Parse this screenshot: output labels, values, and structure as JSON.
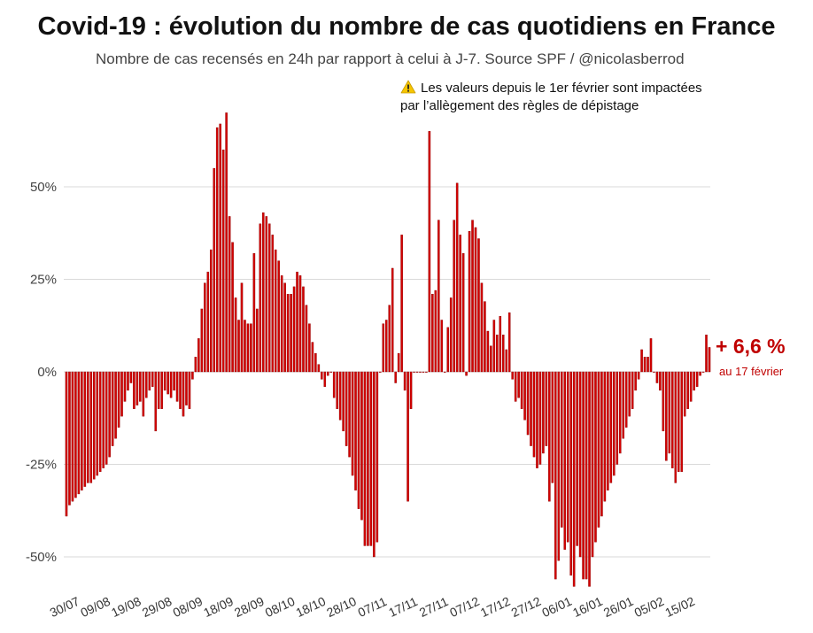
{
  "title": "Covid-19 : évolution du nombre de cas quotidiens en France",
  "subtitle": "Nombre de cas recensés en 24h par rapport à celui à J-7. Source SPF / @nicolasberrod",
  "note": {
    "line1": "Les valeurs depuis le 1er février sont impactées",
    "line2": "par l’allègement des règles de dépistage",
    "icon": "warning-icon"
  },
  "annotation": {
    "value": "+ 6,6 %",
    "date": "au 17 février"
  },
  "colors": {
    "bar": "#d40000",
    "bar_edge": "#8a0000",
    "grid": "#d9d9d9",
    "accent": "#c00000"
  },
  "chart_data": {
    "type": "bar",
    "ylabel": "",
    "xlabel": "",
    "ylim": [
      -55,
      70
    ],
    "yticks": [
      {
        "value": 50,
        "label": "50%"
      },
      {
        "value": 25,
        "label": "25%"
      },
      {
        "value": 0,
        "label": "0%"
      },
      {
        "value": -25,
        "label": "-25%"
      },
      {
        "value": -50,
        "label": "-50%"
      }
    ],
    "xtick_labels": [
      {
        "index": 0,
        "label": "30/07"
      },
      {
        "index": 10,
        "label": "09/08"
      },
      {
        "index": 20,
        "label": "19/08"
      },
      {
        "index": 30,
        "label": "29/08"
      },
      {
        "index": 40,
        "label": "08/09"
      },
      {
        "index": 50,
        "label": "18/09"
      },
      {
        "index": 60,
        "label": "28/09"
      },
      {
        "index": 70,
        "label": "08/10"
      },
      {
        "index": 80,
        "label": "18/10"
      },
      {
        "index": 90,
        "label": "28/10"
      },
      {
        "index": 100,
        "label": "07/11"
      },
      {
        "index": 110,
        "label": "17/11"
      },
      {
        "index": 120,
        "label": "27/11"
      },
      {
        "index": 130,
        "label": "07/12"
      },
      {
        "index": 140,
        "label": "17/12"
      },
      {
        "index": 150,
        "label": "27/12"
      },
      {
        "index": 160,
        "label": "06/01"
      },
      {
        "index": 170,
        "label": "16/01"
      },
      {
        "index": 180,
        "label": "26/01"
      },
      {
        "index": 190,
        "label": "05/02"
      },
      {
        "index": 200,
        "label": "15/02"
      }
    ],
    "values": [
      -39,
      -36,
      -35,
      -34,
      -33,
      -32,
      -31,
      -30,
      -30,
      -29,
      -28,
      -27,
      -26,
      -25,
      -23,
      -20,
      -18,
      -15,
      -12,
      -8,
      -5,
      -3,
      -10,
      -9,
      -8,
      -12,
      -7,
      -5,
      -4,
      -16,
      -10,
      -10,
      -5,
      -6,
      -7,
      -5,
      -8,
      -10,
      -12,
      -9,
      -10,
      -2,
      4,
      9,
      17,
      24,
      27,
      33,
      55,
      66,
      67,
      60,
      70,
      42,
      35,
      20,
      14,
      24,
      14,
      13,
      13,
      32,
      17,
      40,
      43,
      42,
      40,
      37,
      33,
      30,
      26,
      24,
      21,
      21,
      23,
      27,
      26,
      23,
      18,
      13,
      8,
      5,
      2,
      -2,
      -4,
      -1,
      0,
      -7,
      -10,
      -13,
      -16,
      -20,
      -23,
      -28,
      -32,
      -37,
      -40,
      -47,
      -47,
      -47,
      -50,
      -46,
      0,
      13,
      14,
      18,
      28,
      -3,
      5,
      37,
      -5,
      -35,
      -10,
      0,
      0,
      0,
      0,
      0,
      65,
      21,
      22,
      41,
      14,
      0,
      12,
      20,
      41,
      51,
      37,
      32,
      -1,
      38,
      41,
      39,
      36,
      24,
      19,
      11,
      7,
      14,
      10,
      15,
      10,
      6,
      16,
      -2,
      -8,
      -7,
      -10,
      -13,
      -17,
      -20,
      -23,
      -26,
      -25,
      -22,
      -20,
      -35,
      -30,
      -56,
      -51,
      -42,
      -48,
      -46,
      -55,
      -58,
      -47,
      -50,
      -56,
      -56,
      -58,
      -50,
      -46,
      -42,
      -39,
      -35,
      -32,
      -30,
      -28,
      -25,
      -22,
      -18,
      -15,
      -12,
      -10,
      -5,
      -2,
      6,
      4,
      4,
      9,
      0,
      -3,
      -5,
      -16,
      -24,
      -22,
      -26,
      -30,
      -27,
      -27,
      -12,
      -10,
      -8,
      -5,
      -4,
      -1,
      0,
      10,
      6.6
    ]
  }
}
